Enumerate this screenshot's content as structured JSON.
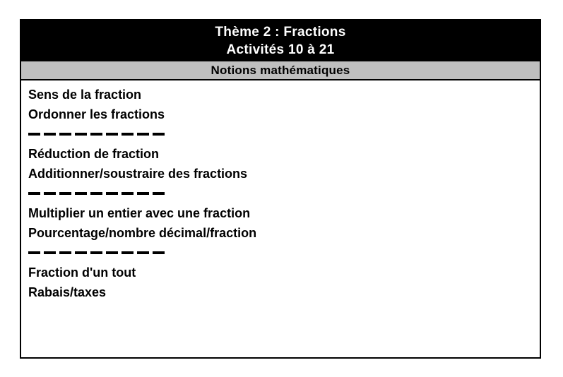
{
  "header": {
    "title_line1": "Thème 2 : Fractions",
    "title_line2": "Activités 10 à 21",
    "bg_color": "#000000",
    "text_color": "#ffffff"
  },
  "subheader": {
    "label": "Notions mathématiques",
    "bg_color": "#bfbfbf",
    "text_color": "#000000"
  },
  "body": {
    "groups": [
      {
        "items": [
          "Sens de la fraction",
          "Ordonner les fractions"
        ]
      },
      {
        "items": [
          "Réduction de fraction",
          "Additionner/soustraire des fractions"
        ]
      },
      {
        "items": [
          "Multiplier un entier avec une fraction",
          "Pourcentage/nombre décimal/fraction"
        ]
      },
      {
        "items": [
          "Fraction d'un tout",
          "Rabais/taxes"
        ]
      }
    ]
  }
}
